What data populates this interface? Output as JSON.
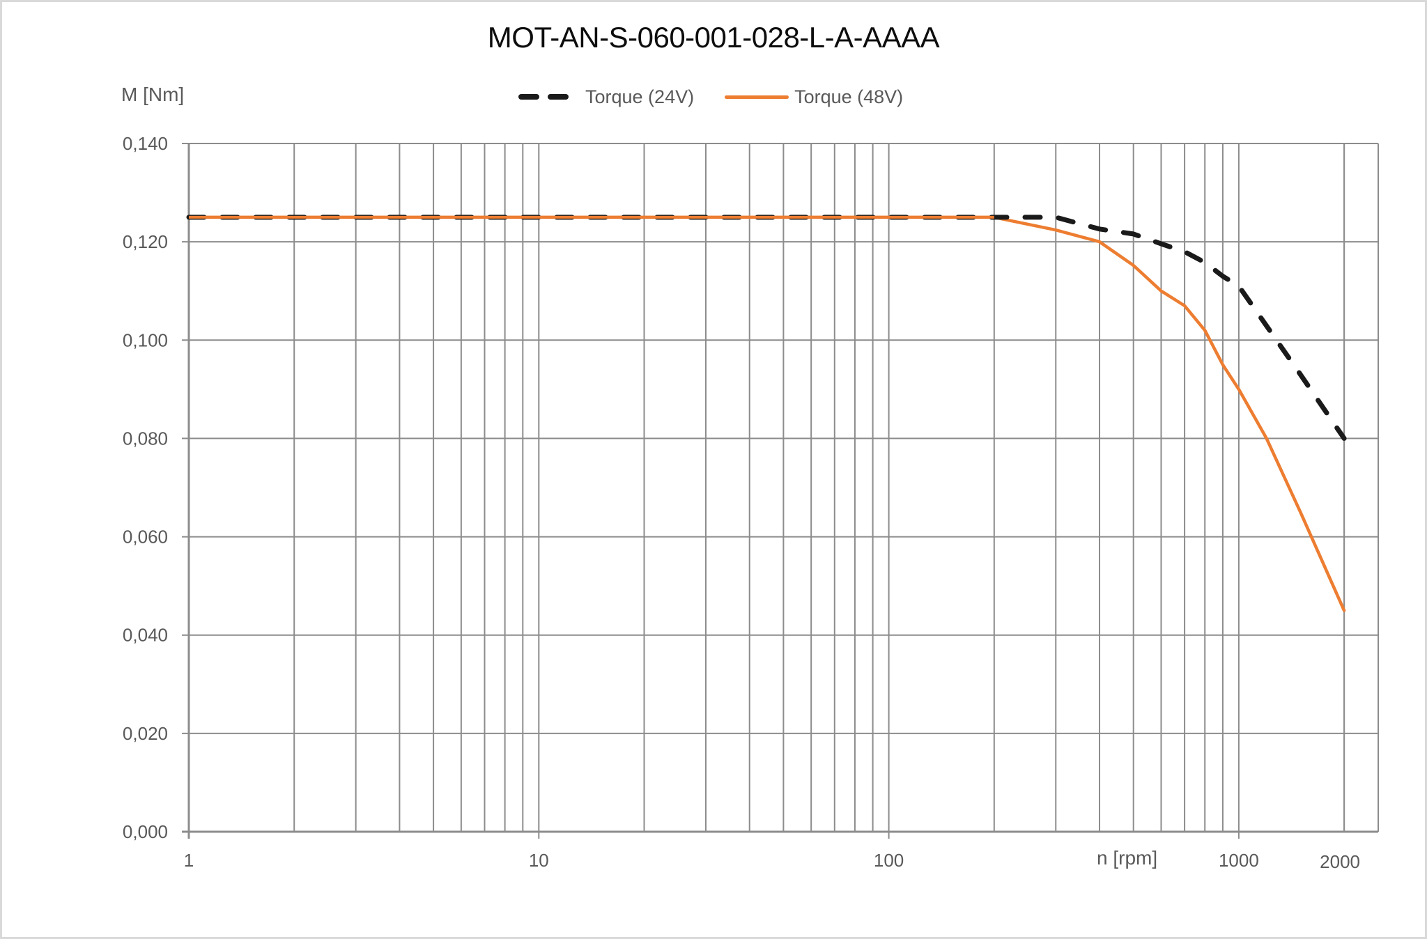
{
  "chart_data": {
    "type": "line",
    "title": "MOT-AN-S-060-001-028-L-A-AAAA",
    "xlabel": "n [rpm]",
    "ylabel": "M [Nm]",
    "x_scale": "log",
    "xlim": [
      1,
      2500
    ],
    "ylim": [
      0,
      0.14
    ],
    "x_tick_labels": [
      "1",
      "10",
      "100",
      "1000",
      "2000"
    ],
    "x_ticks": [
      1,
      10,
      100,
      1000,
      2000
    ],
    "y_ticks": [
      0,
      0.02,
      0.04,
      0.06,
      0.08,
      0.1,
      0.12,
      0.14
    ],
    "y_tick_labels": [
      "0,000",
      "0,020",
      "0,040",
      "0,060",
      "0,080",
      "0,100",
      "0,120",
      "0,140"
    ],
    "grid": true,
    "legend_position": "top",
    "series": [
      {
        "name": "Torque (24V)",
        "style": "dashed",
        "color": "#1a1a1a",
        "x": [
          1,
          200,
          300,
          400,
          500,
          600,
          700,
          800,
          900,
          1000,
          1500,
          2000
        ],
        "values": [
          0.125,
          0.125,
          0.125,
          0.1226,
          0.1216,
          0.1196,
          0.118,
          0.1158,
          0.113,
          0.111,
          0.093,
          0.08
        ]
      },
      {
        "name": "Torque (48V)",
        "style": "solid",
        "color": "#ed7d31",
        "x": [
          1,
          200,
          300,
          400,
          500,
          600,
          700,
          800,
          900,
          1000,
          1200,
          1500,
          2000
        ],
        "values": [
          0.125,
          0.125,
          0.1224,
          0.12,
          0.1152,
          0.11,
          0.107,
          0.102,
          0.095,
          0.09,
          0.08,
          0.065,
          0.045
        ]
      }
    ]
  },
  "header": {
    "title": "MOT-AN-S-060-001-028-L-A-AAAA",
    "y_axis_label": "M [Nm]",
    "x_axis_label": "n [rpm]"
  },
  "legend": {
    "items": [
      {
        "label": "Torque (24V)",
        "color": "#1a1a1a",
        "icon": "dashed-line-icon"
      },
      {
        "label": "Torque (48V)",
        "color": "#ed7d31",
        "icon": "solid-line-icon"
      }
    ]
  },
  "colors": {
    "grid": "#8c8c8c",
    "axis_text": "#595959",
    "border": "#d9d9d9"
  }
}
